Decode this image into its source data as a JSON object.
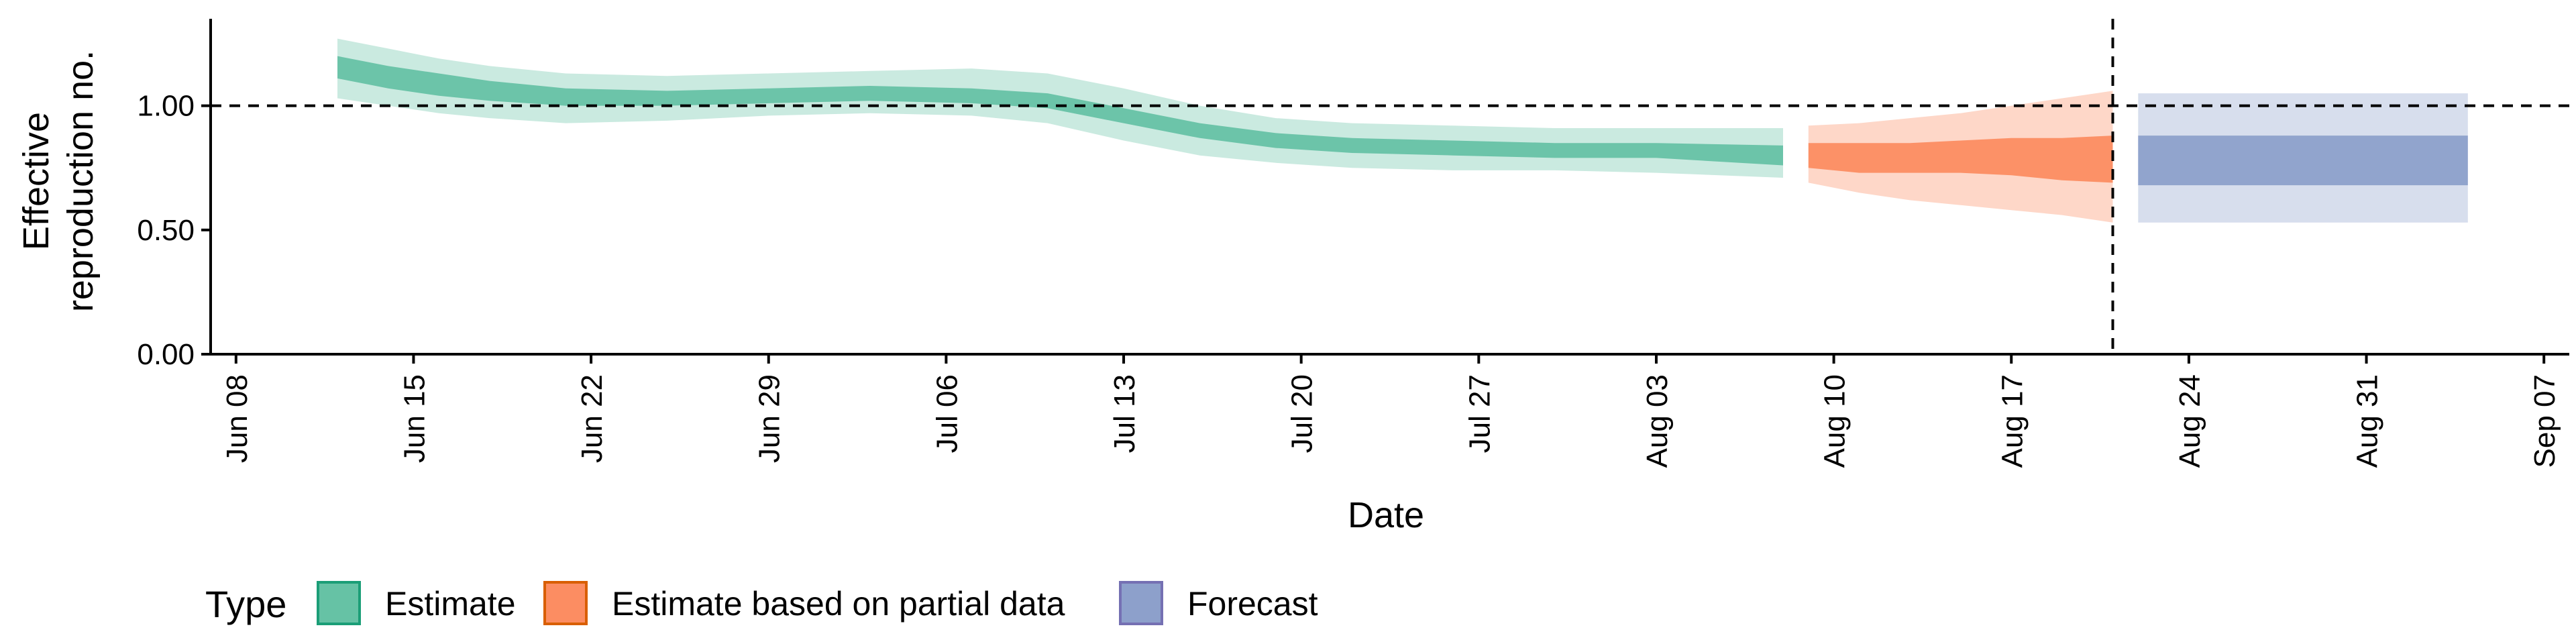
{
  "chart_data": {
    "type": "area",
    "xlabel": "Date",
    "ylabel_lines": [
      "Effective",
      "reproduction no."
    ],
    "ylim": [
      0,
      1.35
    ],
    "y_ticks": [
      0,
      0.5,
      1.0
    ],
    "y_tick_labels": [
      "0.00",
      "0.50",
      "1.00"
    ],
    "xlim": [
      "2020-06-07",
      "2020-09-08"
    ],
    "x_ticks": [
      "2020-06-08",
      "2020-06-15",
      "2020-06-22",
      "2020-06-29",
      "2020-07-06",
      "2020-07-13",
      "2020-07-20",
      "2020-07-27",
      "2020-08-03",
      "2020-08-10",
      "2020-08-17",
      "2020-08-24",
      "2020-08-31",
      "2020-09-07"
    ],
    "x_tick_labels": [
      "Jun 08",
      "Jun 15",
      "Jun 22",
      "Jun 29",
      "Jul 06",
      "Jul 13",
      "Jul 20",
      "Jul 27",
      "Aug 03",
      "Aug 10",
      "Aug 17",
      "Aug 24",
      "Aug 31",
      "Sep 07"
    ],
    "reference_hline": 1.0,
    "reference_vline": "2020-08-21",
    "series": [
      {
        "name": "Estimate",
        "color": "#66c2a5",
        "x": [
          "2020-06-12",
          "2020-06-14",
          "2020-06-16",
          "2020-06-18",
          "2020-06-21",
          "2020-06-25",
          "2020-06-29",
          "2020-07-03",
          "2020-07-07",
          "2020-07-10",
          "2020-07-13",
          "2020-07-16",
          "2020-07-19",
          "2020-07-22",
          "2020-07-26",
          "2020-07-30",
          "2020-08-03",
          "2020-08-08"
        ],
        "median_low": [
          1.11,
          1.07,
          1.04,
          1.02,
          1.0,
          1.0,
          1.01,
          1.02,
          1.01,
          0.99,
          0.93,
          0.87,
          0.83,
          0.81,
          0.8,
          0.79,
          0.79,
          0.76
        ],
        "median_high": [
          1.2,
          1.16,
          1.13,
          1.1,
          1.07,
          1.06,
          1.07,
          1.08,
          1.07,
          1.05,
          0.99,
          0.93,
          0.89,
          0.87,
          0.86,
          0.85,
          0.85,
          0.84
        ],
        "ci_low": [
          1.03,
          1.0,
          0.97,
          0.95,
          0.93,
          0.94,
          0.96,
          0.97,
          0.96,
          0.93,
          0.86,
          0.8,
          0.77,
          0.75,
          0.74,
          0.74,
          0.73,
          0.71
        ],
        "ci_high": [
          1.27,
          1.23,
          1.19,
          1.16,
          1.13,
          1.12,
          1.13,
          1.14,
          1.15,
          1.13,
          1.07,
          1.0,
          0.95,
          0.93,
          0.92,
          0.91,
          0.91,
          0.91
        ]
      },
      {
        "name": "Estimate based on partial data",
        "color": "#fc8d62",
        "x": [
          "2020-08-09",
          "2020-08-11",
          "2020-08-13",
          "2020-08-15",
          "2020-08-17",
          "2020-08-19",
          "2020-08-21"
        ],
        "median_low": [
          0.75,
          0.73,
          0.73,
          0.73,
          0.72,
          0.7,
          0.69
        ],
        "median_high": [
          0.85,
          0.85,
          0.85,
          0.86,
          0.87,
          0.87,
          0.88
        ],
        "ci_low": [
          0.69,
          0.65,
          0.62,
          0.6,
          0.58,
          0.56,
          0.53
        ],
        "ci_high": [
          0.92,
          0.93,
          0.95,
          0.97,
          1.0,
          1.03,
          1.06
        ]
      },
      {
        "name": "Forecast",
        "color": "#8da0cb",
        "x": [
          "2020-08-22",
          "2020-09-04"
        ],
        "median_low": [
          0.68,
          0.68
        ],
        "median_high": [
          0.88,
          0.88
        ],
        "ci_low": [
          0.53,
          0.53
        ],
        "ci_high": [
          1.05,
          1.05
        ]
      }
    ],
    "legend_title": "Type",
    "legend_position": "bottom",
    "legend_entries": [
      {
        "label": "Estimate",
        "fill": "#66c2a5",
        "stroke": "#1b9e77"
      },
      {
        "label": "Estimate based on partial data",
        "fill": "#fc8d62",
        "stroke": "#d95f02"
      },
      {
        "label": "Forecast",
        "fill": "#8da0cb",
        "stroke": "#7570b3"
      }
    ]
  }
}
